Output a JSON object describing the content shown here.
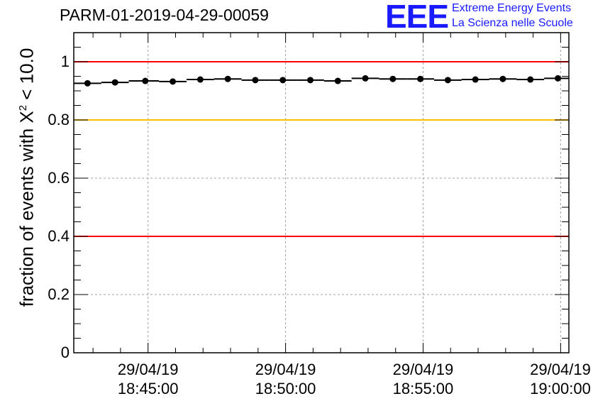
{
  "header": {
    "run_id": "PARM-01-2019-04-29-00059"
  },
  "logo": {
    "mark": "EEE",
    "line1": "Extreme Energy Events",
    "line2": "La Scienza nelle Scuole",
    "color": "#1a1aff"
  },
  "chart_data": {
    "type": "scatter",
    "title": "PARM-01-2019-04-29-00059",
    "xlabel": "",
    "ylabel_prefix": "fraction of events with ",
    "ylabel_symbol": "X",
    "ylabel_sup": "2",
    "ylabel_suffix": " < 10.0",
    "xlim_minutes": [
      42.3,
      60.3
    ],
    "ylim": [
      0,
      1.1
    ],
    "yticks": [
      0,
      0.2,
      0.4,
      0.6,
      0.8,
      1
    ],
    "ytick_labels": [
      "0",
      "0.2",
      "0.4",
      "0.6",
      "0.8",
      "1"
    ],
    "xticks_minutes": [
      45,
      50,
      55,
      60
    ],
    "xtick_labels": [
      {
        "date": "29/04/19",
        "time": "18:45:00"
      },
      {
        "date": "29/04/19",
        "time": "18:50:00"
      },
      {
        "date": "29/04/19",
        "time": "18:55:00"
      },
      {
        "date": "29/04/19",
        "time": "19:00:00"
      }
    ],
    "x_minutes": [
      42.8,
      43.8,
      44.9,
      45.9,
      46.9,
      47.9,
      48.9,
      49.9,
      50.9,
      51.9,
      52.9,
      53.9,
      54.9,
      55.9,
      56.9,
      57.9,
      58.9,
      59.9
    ],
    "bin_edges_minutes": [
      42.3,
      43.3,
      44.3,
      45.4,
      46.4,
      47.4,
      48.4,
      49.4,
      50.4,
      51.4,
      52.4,
      53.4,
      54.4,
      55.4,
      56.4,
      57.4,
      58.4,
      59.4,
      60.3
    ],
    "values": [
      0.926,
      0.929,
      0.934,
      0.932,
      0.939,
      0.941,
      0.937,
      0.937,
      0.937,
      0.934,
      0.943,
      0.941,
      0.941,
      0.937,
      0.939,
      0.941,
      0.939,
      0.943
    ],
    "reference_lines": [
      {
        "y": 1.0,
        "color": "#ff0000"
      },
      {
        "y": 0.8,
        "color": "#ffc000"
      },
      {
        "y": 0.4,
        "color": "#ff0000"
      }
    ],
    "grid": true
  }
}
